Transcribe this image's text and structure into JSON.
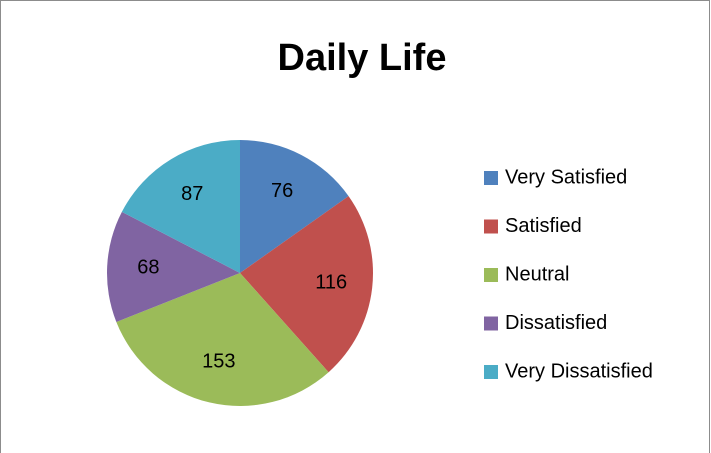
{
  "chart_data": {
    "type": "pie",
    "title": "Daily Life",
    "categories": [
      "Very Satisfied",
      "Satisfied",
      "Neutral",
      "Dissatisfied",
      "Very Dissatisfied"
    ],
    "values": [
      76,
      116,
      153,
      68,
      87
    ],
    "colors": [
      "#4f81bd",
      "#c0504d",
      "#9bbb59",
      "#8064a2",
      "#4bacc6"
    ],
    "legend": "right"
  }
}
